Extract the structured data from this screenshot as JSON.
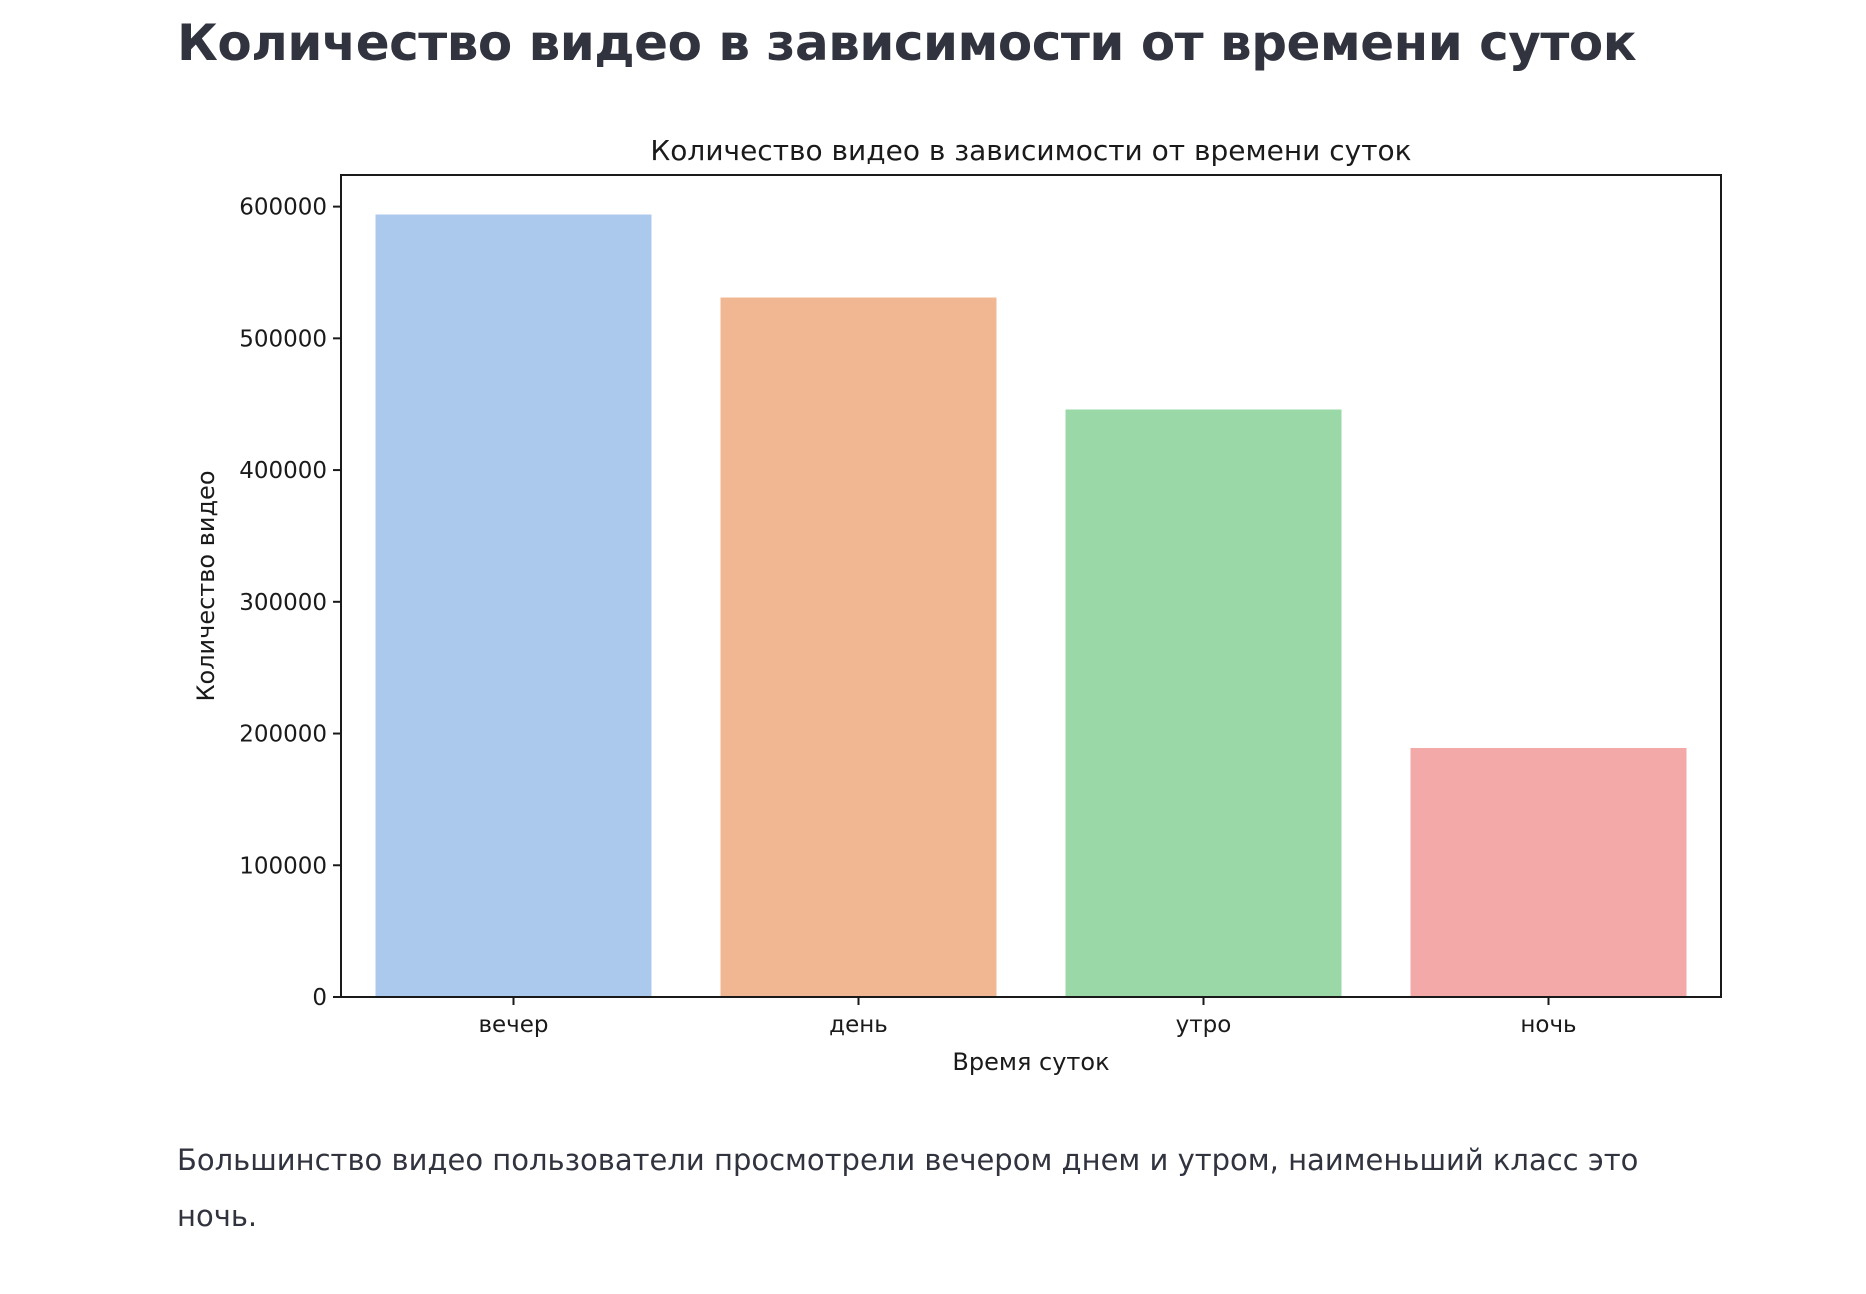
{
  "page": {
    "heading": "Количество видео в зависимости от времени суток",
    "caption": "Большинство видео пользователи просмотрели вечером днем и утром, наименьший класс это ночь."
  },
  "chart_data": {
    "type": "bar",
    "title": "Количество видео в зависимости от времени суток",
    "xlabel": "Время суток",
    "ylabel": "Количество видео",
    "categories": [
      "вечер",
      "день",
      "утро",
      "ночь"
    ],
    "values": [
      594000,
      531000,
      446000,
      189000
    ],
    "colors": [
      "#abc9ed",
      "#f0b792",
      "#9ad9a7",
      "#f2a9a7"
    ],
    "ylim": [
      0,
      624000
    ],
    "yticks": [
      0,
      100000,
      200000,
      300000,
      400000,
      500000,
      600000
    ],
    "ytick_labels": [
      "0",
      "100000",
      "200000",
      "300000",
      "400000",
      "500000",
      "600000"
    ],
    "grid": false,
    "legend": "none"
  }
}
